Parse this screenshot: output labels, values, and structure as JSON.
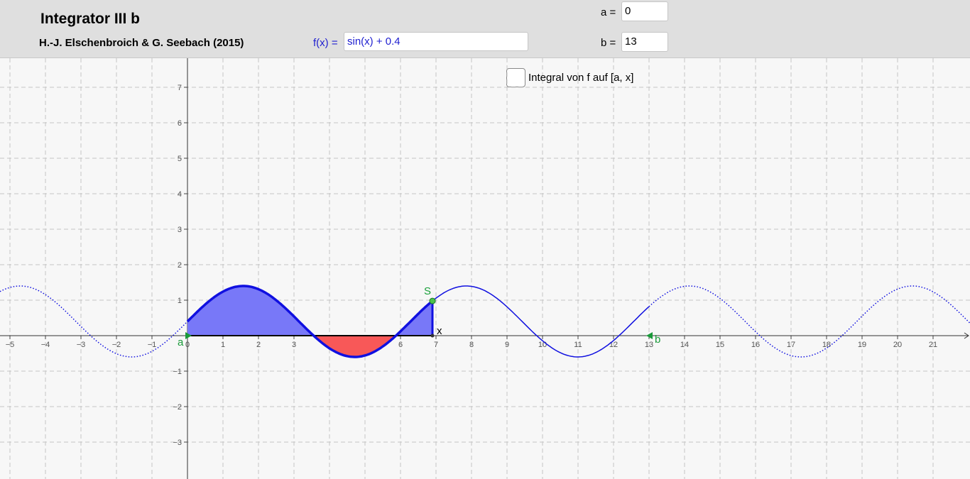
{
  "header": {
    "title": "Integrator III b",
    "authors": "H.-J. Elschenbroich & G. Seebach (2015)",
    "function_label": "f(x) =",
    "function_input": "sin(x) + 0.4",
    "a_label": "a =",
    "a_input": "0",
    "b_label": "b =",
    "b_input": "13"
  },
  "graphics": {
    "checkbox_label": "Integral von f auf [a, x]",
    "a": 0,
    "b": 13,
    "x_value": 6.9,
    "point_label": "S",
    "x_point_label": "x",
    "a_point_label": "a",
    "b_point_label": "b",
    "xlim": [
      -5.28,
      22.04
    ],
    "ylim": [
      -4.04,
      7.82
    ],
    "xticks": [
      {
        "value": -5,
        "label": "−5"
      },
      {
        "value": -4,
        "label": "−4"
      },
      {
        "value": -3,
        "label": "−3"
      },
      {
        "value": -2,
        "label": "−2"
      },
      {
        "value": -1,
        "label": "−1"
      },
      0,
      1,
      2,
      3,
      4,
      5,
      6,
      7,
      8,
      9,
      10,
      11,
      12,
      13,
      14,
      15,
      16,
      17,
      18,
      19,
      20,
      21
    ],
    "yticks": [
      {
        "value": -3,
        "label": "−3"
      },
      {
        "value": -2,
        "label": "−2"
      },
      {
        "value": -1,
        "label": "−1"
      },
      1,
      2,
      3,
      4,
      5,
      6,
      7
    ]
  }
}
